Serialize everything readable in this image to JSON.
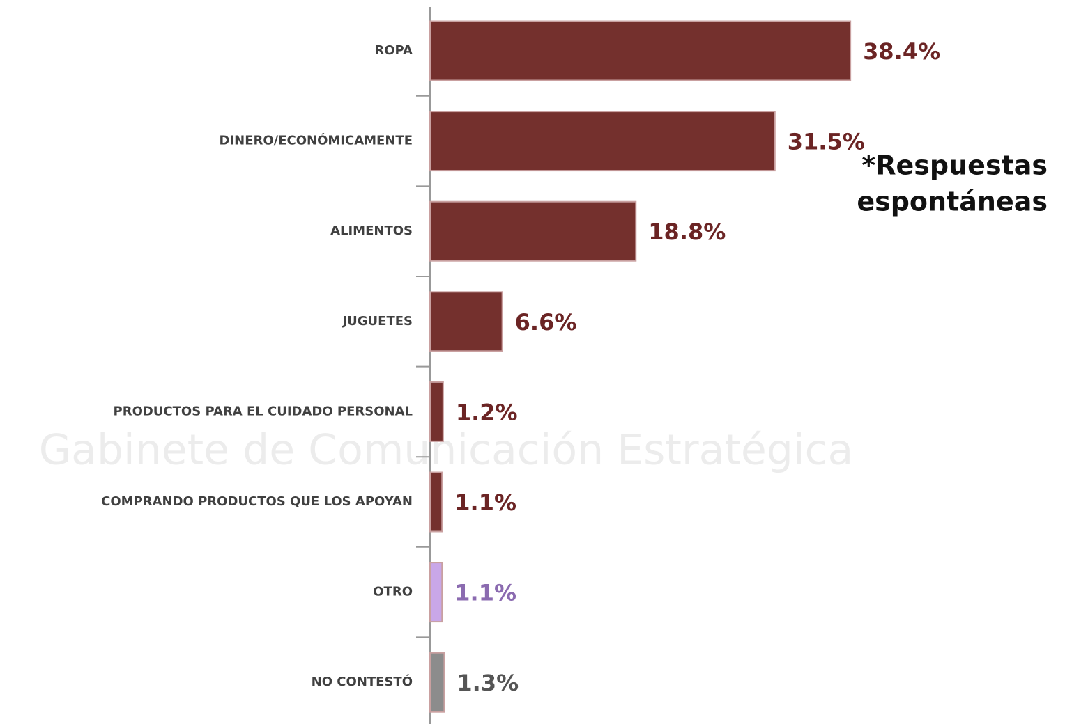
{
  "chart_data": {
    "type": "bar",
    "orientation": "horizontal",
    "categories": [
      "ROPA",
      "DINERO/ECONÓMICAMENTE",
      "ALIMENTOS",
      "JUGUETES",
      "PRODUCTOS PARA EL CUIDADO PERSONAL",
      "COMPRANDO PRODUCTOS QUE LOS APOYAN",
      "OTRO",
      "NO CONTESTÓ"
    ],
    "values": [
      38.4,
      31.5,
      18.8,
      6.6,
      1.2,
      1.1,
      1.1,
      1.3
    ],
    "value_labels": [
      "38.4%",
      "31.5%",
      "18.8%",
      "6.6%",
      "1.2%",
      "1.1%",
      "1.1%",
      "1.3%"
    ],
    "colors": [
      "#74302d",
      "#74302d",
      "#74302d",
      "#74302d",
      "#74302d",
      "#74302d",
      "#c9a7e8",
      "#8c8c8c"
    ],
    "label_colors": [
      "#6b2424",
      "#6b2424",
      "#6b2424",
      "#6b2424",
      "#6b2424",
      "#6b2424",
      "#8b6bb0",
      "#555555"
    ],
    "xlim": [
      0,
      58
    ],
    "annotation": [
      "*Respuestas",
      "espontáneas"
    ],
    "watermark": "Gabinete de Comunicación Estratégica"
  }
}
